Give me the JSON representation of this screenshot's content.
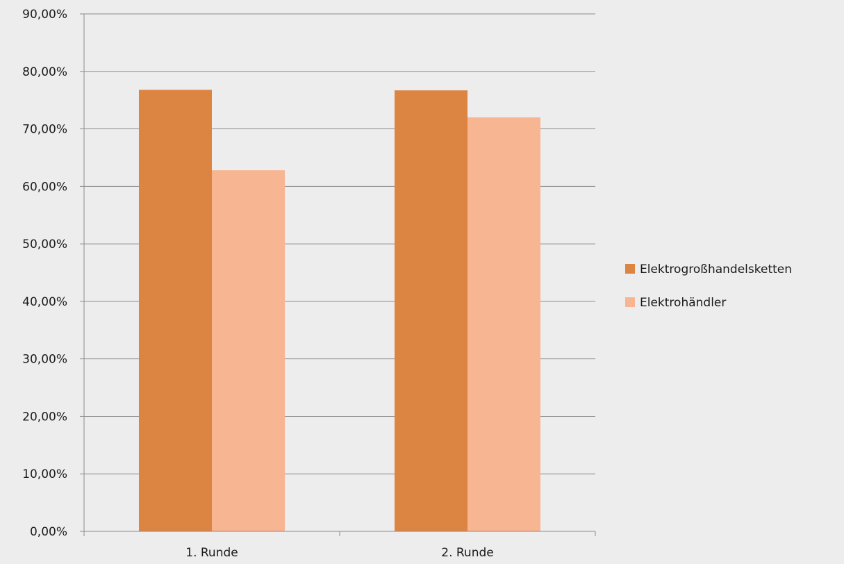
{
  "colors": {
    "background": "#ededed",
    "gridline": "#8c8c8c",
    "axis": "#8c8c8c",
    "text": "#1a1a1a"
  },
  "chart_data": {
    "type": "bar",
    "categories": [
      "1. Runde",
      "2. Runde"
    ],
    "series": [
      {
        "name": "Elektrogroßhandelsketten",
        "color": "#dc8442",
        "values": [
          76.8,
          76.7
        ]
      },
      {
        "name": "Elektrohändler",
        "color": "#f8b591",
        "values": [
          62.8,
          72.0
        ]
      }
    ],
    "ylim": [
      0,
      90
    ],
    "ytick_step": 10,
    "ytick_labels": [
      "0,00%",
      "10,00%",
      "20,00%",
      "30,00%",
      "40,00%",
      "50,00%",
      "60,00%",
      "70,00%",
      "80,00%",
      "90,00%"
    ],
    "grid": true,
    "legend_position": "right"
  }
}
